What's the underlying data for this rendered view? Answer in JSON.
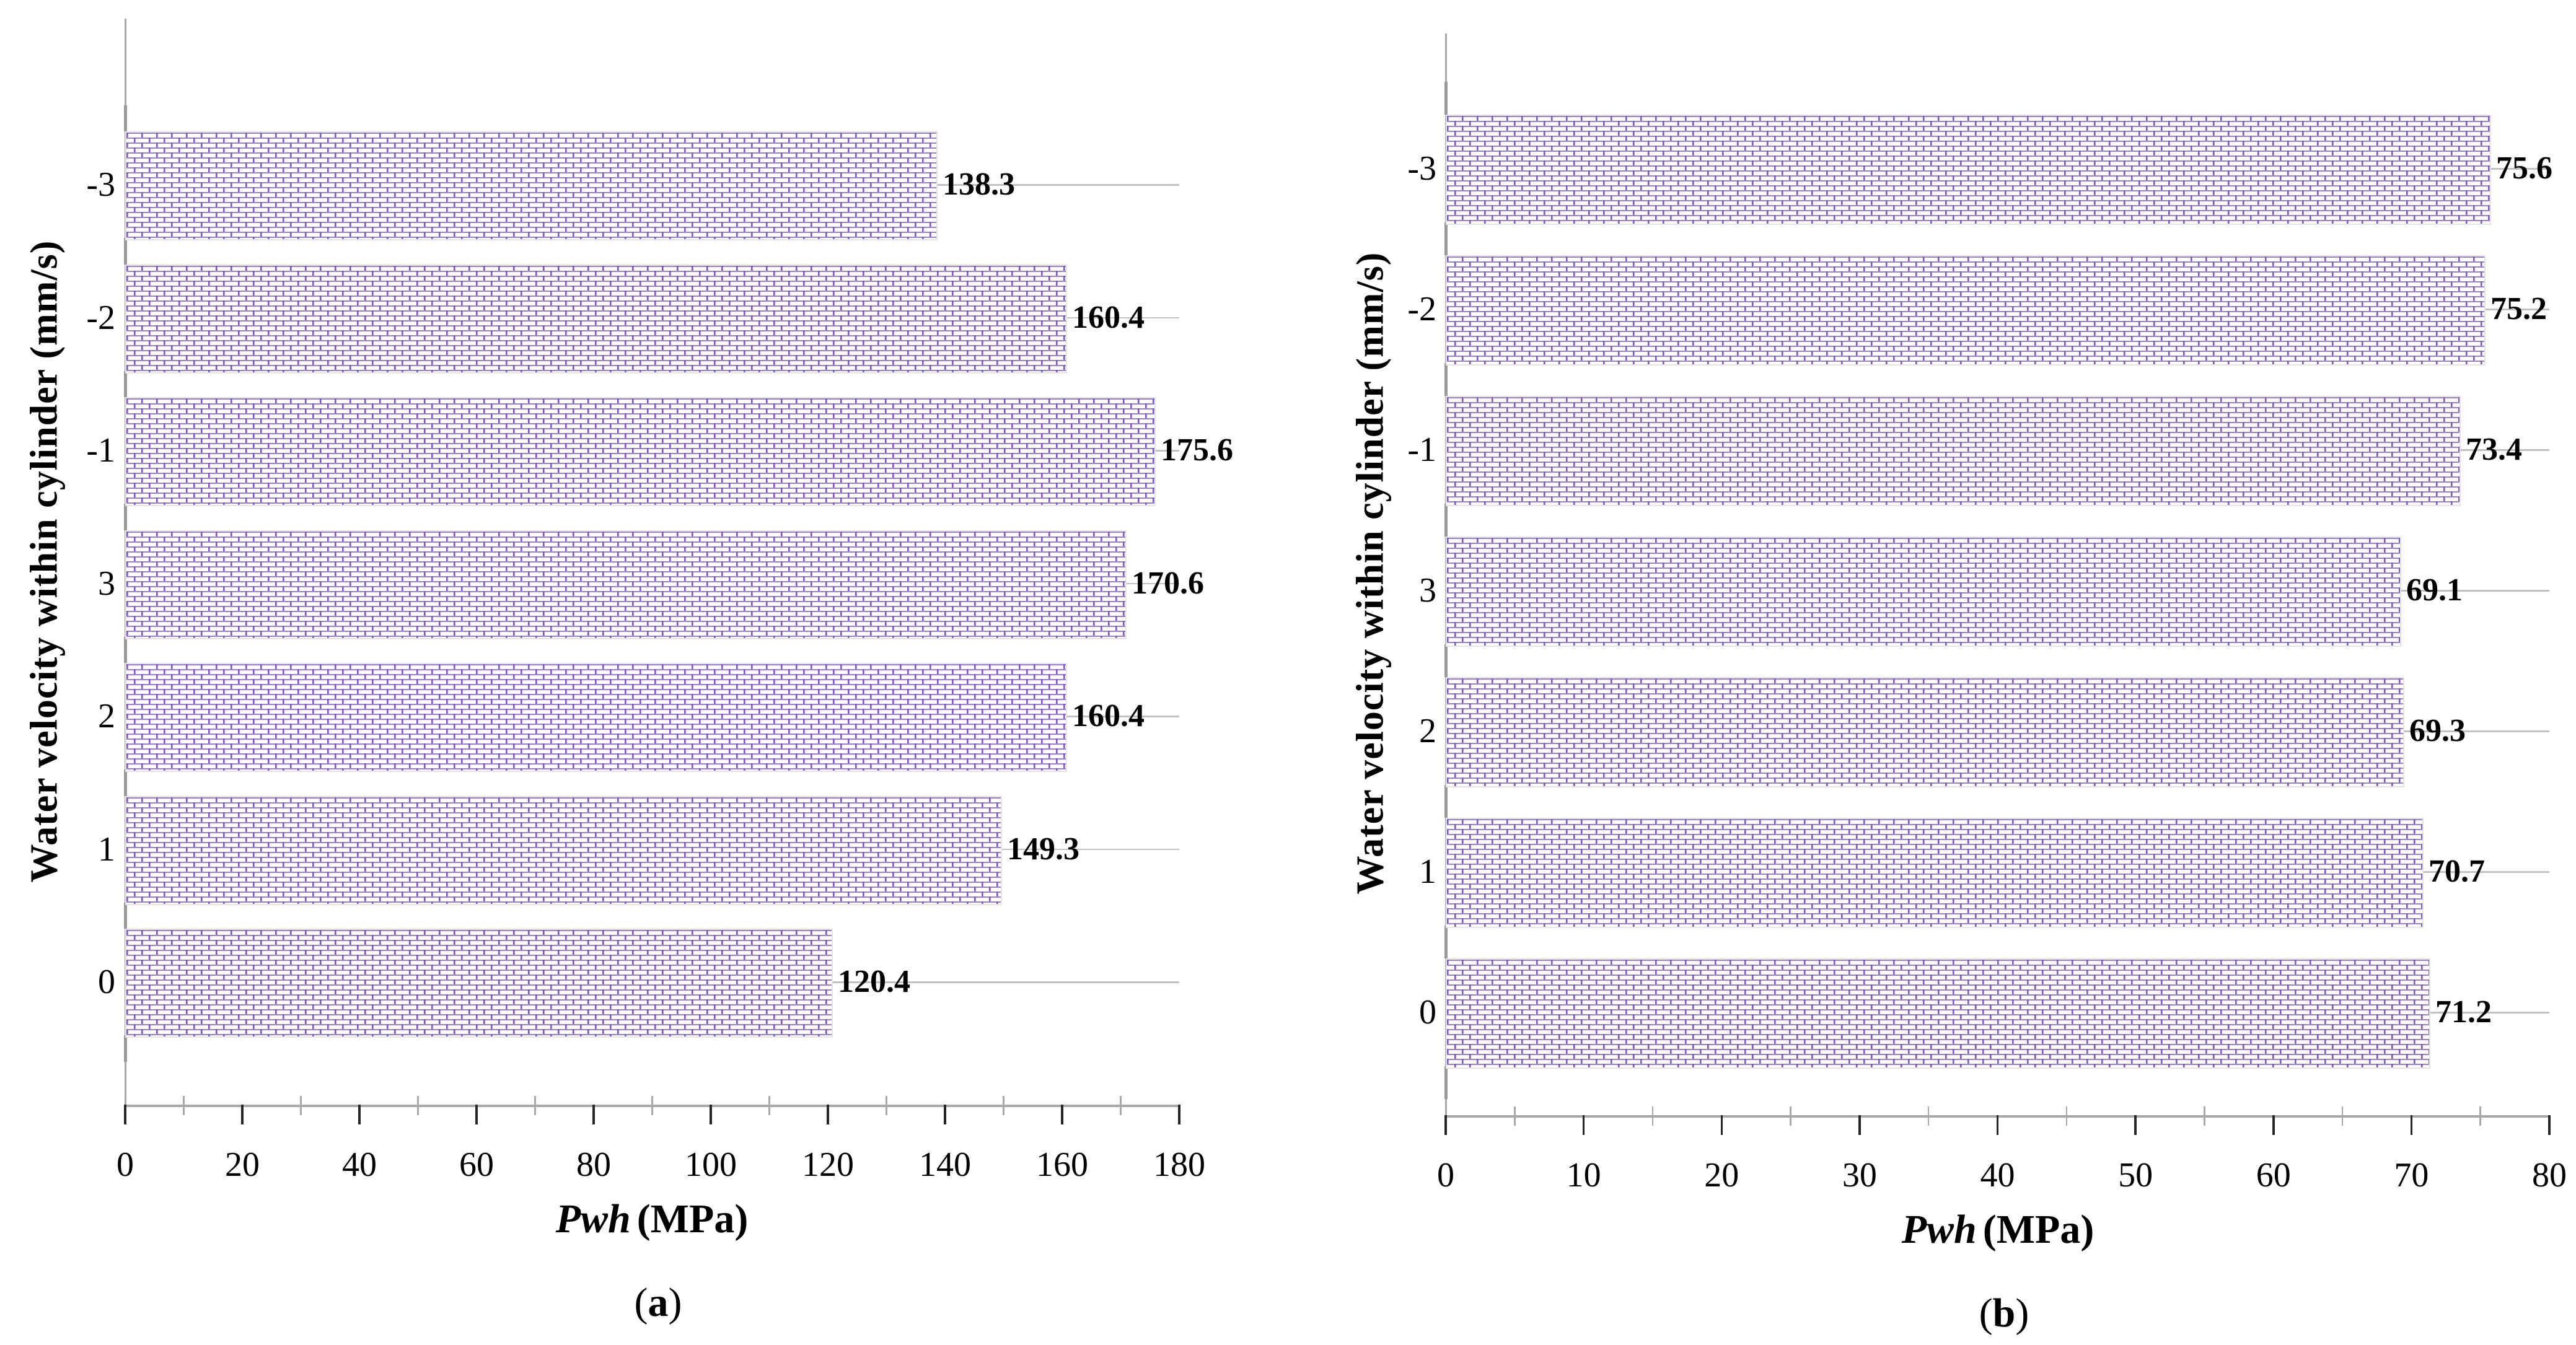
{
  "figure": {
    "background": "#ffffff",
    "panel_captions": [
      "(a)",
      "(b)"
    ]
  },
  "colors": {
    "pattern_line_horizontal": "#9b80d2",
    "pattern_line_vertical": "#7e57c2",
    "pattern_background": "#ffffff",
    "bar_border": "#e4e4e4",
    "gridline": "#c2c2c2",
    "axis_line": "#a8a8a8",
    "major_tick": "#262626",
    "minor_tick": "#a8a8a8",
    "text": "#000000"
  },
  "chart_data": [
    {
      "type": "bar",
      "orientation": "horizontal",
      "caption_letter": "a",
      "ylabel": "Water velocity within cylinder (mm/s)",
      "xlabel_italic": "Pwh",
      "xlabel_unit": "(MPa)",
      "categories": [
        "-3",
        "-2",
        "-1",
        "3",
        "2",
        "1",
        "0"
      ],
      "values": [
        138.3,
        160.4,
        175.6,
        170.6,
        160.4,
        149.3,
        120.4
      ],
      "data_labels": [
        "138.3",
        "160.4",
        "175.6",
        "170.6",
        "160.4",
        "149.3",
        "120.4"
      ],
      "xlim": [
        0,
        180
      ],
      "x_major_ticks": [
        0,
        20,
        40,
        60,
        80,
        100,
        120,
        140,
        160,
        180
      ],
      "x_tick_labels": [
        "0",
        "20",
        "40",
        "60",
        "80",
        "100",
        "120",
        "140",
        "160",
        "180"
      ],
      "x_minor_ticks": [
        10,
        30,
        50,
        70,
        90,
        110,
        130,
        150,
        170
      ],
      "grid": "horizontal gray category gridlines to plot right edge",
      "legend": "none",
      "bar_fill": "purple brick pattern on white"
    },
    {
      "type": "bar",
      "orientation": "horizontal",
      "caption_letter": "b",
      "ylabel": "Water velocity within cylinder (mm/s)",
      "xlabel_italic": "Pwh",
      "xlabel_unit": "(MPa)",
      "categories": [
        "-3",
        "-2",
        "-1",
        "3",
        "2",
        "1",
        "0"
      ],
      "values": [
        75.6,
        75.2,
        73.4,
        69.1,
        69.3,
        70.7,
        71.2
      ],
      "data_labels": [
        "75.6",
        "75.2",
        "73.4",
        "69.1",
        "69.3",
        "70.7",
        "71.2"
      ],
      "xlim": [
        0,
        80
      ],
      "x_major_ticks": [
        0,
        10,
        20,
        30,
        40,
        50,
        60,
        70,
        80
      ],
      "x_tick_labels": [
        "0",
        "10",
        "20",
        "30",
        "40",
        "50",
        "60",
        "70",
        "80"
      ],
      "x_minor_ticks": [
        5,
        15,
        25,
        35,
        45,
        55,
        65,
        75
      ],
      "grid": "horizontal gray category gridlines to plot right edge",
      "legend": "none",
      "bar_fill": "purple brick pattern on white"
    }
  ]
}
